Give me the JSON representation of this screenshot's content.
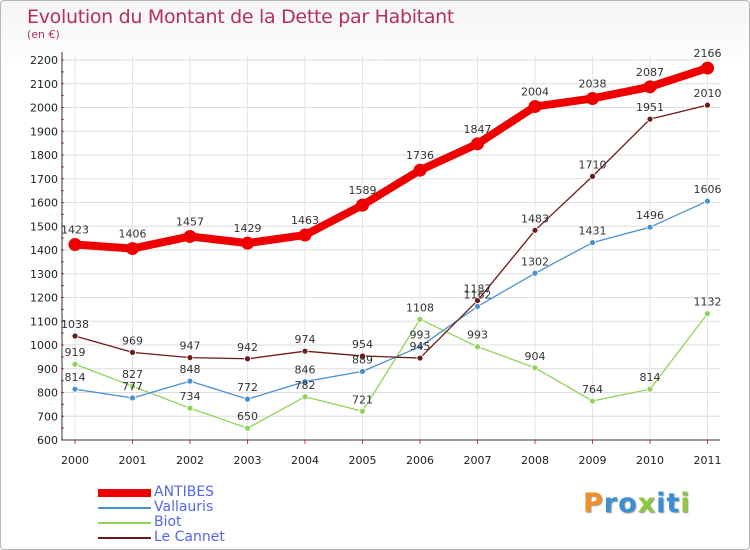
{
  "header": {
    "title": "Evolution du Montant de la Dette par Habitant",
    "unit": "(en €)"
  },
  "brand": {
    "text": "Proxiti",
    "colors": [
      "#f0902a",
      "#3a8fd8",
      "#3a8fd8",
      "#8dc63f",
      "#3a8fd8",
      "#3a8fd8",
      "#8dc63f"
    ]
  },
  "chart_data": {
    "type": "line",
    "title": "Evolution du Montant de la Dette par Habitant",
    "ylabel": "(en €)",
    "xlabel": "",
    "x": [
      "2000",
      "2001",
      "2002",
      "2003",
      "2004",
      "2005",
      "2006",
      "2007",
      "2008",
      "2009",
      "2010",
      "2011"
    ],
    "ylim": [
      600,
      2200
    ],
    "yticks": [
      600,
      700,
      800,
      900,
      1000,
      1100,
      1200,
      1300,
      1400,
      1500,
      1600,
      1700,
      1800,
      1900,
      2000,
      2100,
      2200
    ],
    "grid": true,
    "legend_position": "bottom-left",
    "series": [
      {
        "name": "ANTIBES",
        "color": "#ee0000",
        "values": [
          1423,
          1406,
          1457,
          1429,
          1463,
          1589,
          1736,
          1847,
          2004,
          2038,
          2087,
          2166
        ]
      },
      {
        "name": "Vallauris",
        "color": "#4a90d0",
        "values": [
          814,
          777,
          848,
          772,
          846,
          889,
          993,
          1162,
          1302,
          1431,
          1496,
          1606
        ]
      },
      {
        "name": "Biot",
        "color": "#8fd45a",
        "values": [
          919,
          827,
          734,
          650,
          782,
          721,
          1108,
          993,
          904,
          764,
          814,
          1132
        ]
      },
      {
        "name": "Le Cannet",
        "color": "#6e1a1a",
        "values": [
          1038,
          969,
          947,
          942,
          974,
          954,
          945,
          1187,
          1483,
          1710,
          1951,
          2010
        ]
      }
    ]
  }
}
